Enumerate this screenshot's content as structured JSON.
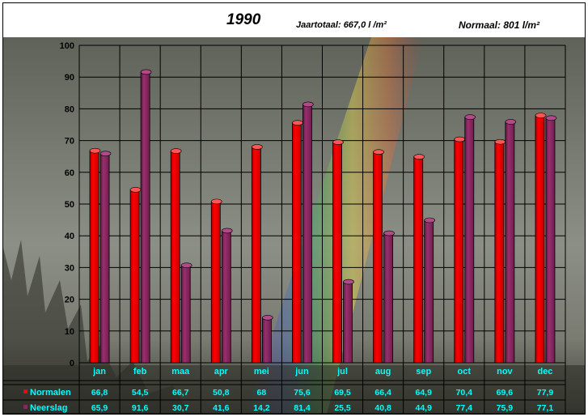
{
  "header": {
    "year": "1990",
    "total": "Jaartotaal: 667,0 l /m²",
    "normal": "Normaal: 801 l/m²"
  },
  "colors": {
    "normalen": "#ff0000",
    "neerslag": "#8b2660",
    "table_text": "#00ffff",
    "grid": "#000000"
  },
  "chart_data": {
    "type": "bar",
    "title": "1990",
    "subtitle": "Jaartotaal: 667,0 l /m²",
    "annotation": "Normaal: 801 l/m²",
    "categories": [
      "jan",
      "feb",
      "maa",
      "apr",
      "mei",
      "jun",
      "jul",
      "aug",
      "sep",
      "oct",
      "nov",
      "dec"
    ],
    "series": [
      {
        "name": "Normalen",
        "color": "#ff0000",
        "values": [
          66.8,
          54.5,
          66.7,
          50.8,
          68,
          75.6,
          69.5,
          66.4,
          64.9,
          70.4,
          69.6,
          77.9
        ],
        "labels": [
          "66,8",
          "54,5",
          "66,7",
          "50,8",
          "68",
          "75,6",
          "69,5",
          "66,4",
          "64,9",
          "70,4",
          "69,6",
          "77,9"
        ]
      },
      {
        "name": "Neerslag",
        "color": "#8b2660",
        "values": [
          65.9,
          91.6,
          30.7,
          41.6,
          14.2,
          81.4,
          25.5,
          40.8,
          44.9,
          77.4,
          75.9,
          77.1
        ],
        "labels": [
          "65,9",
          "91,6",
          "30,7",
          "41,6",
          "14,2",
          "81,4",
          "25,5",
          "40,8",
          "44,9",
          "77,4",
          "75,9",
          "77,1"
        ]
      }
    ],
    "ylim": [
      0,
      100
    ],
    "yticks": [
      "0",
      "10",
      "20",
      "30",
      "40",
      "50",
      "60",
      "70",
      "80",
      "90",
      "100"
    ],
    "grid": true,
    "data_table": true
  }
}
